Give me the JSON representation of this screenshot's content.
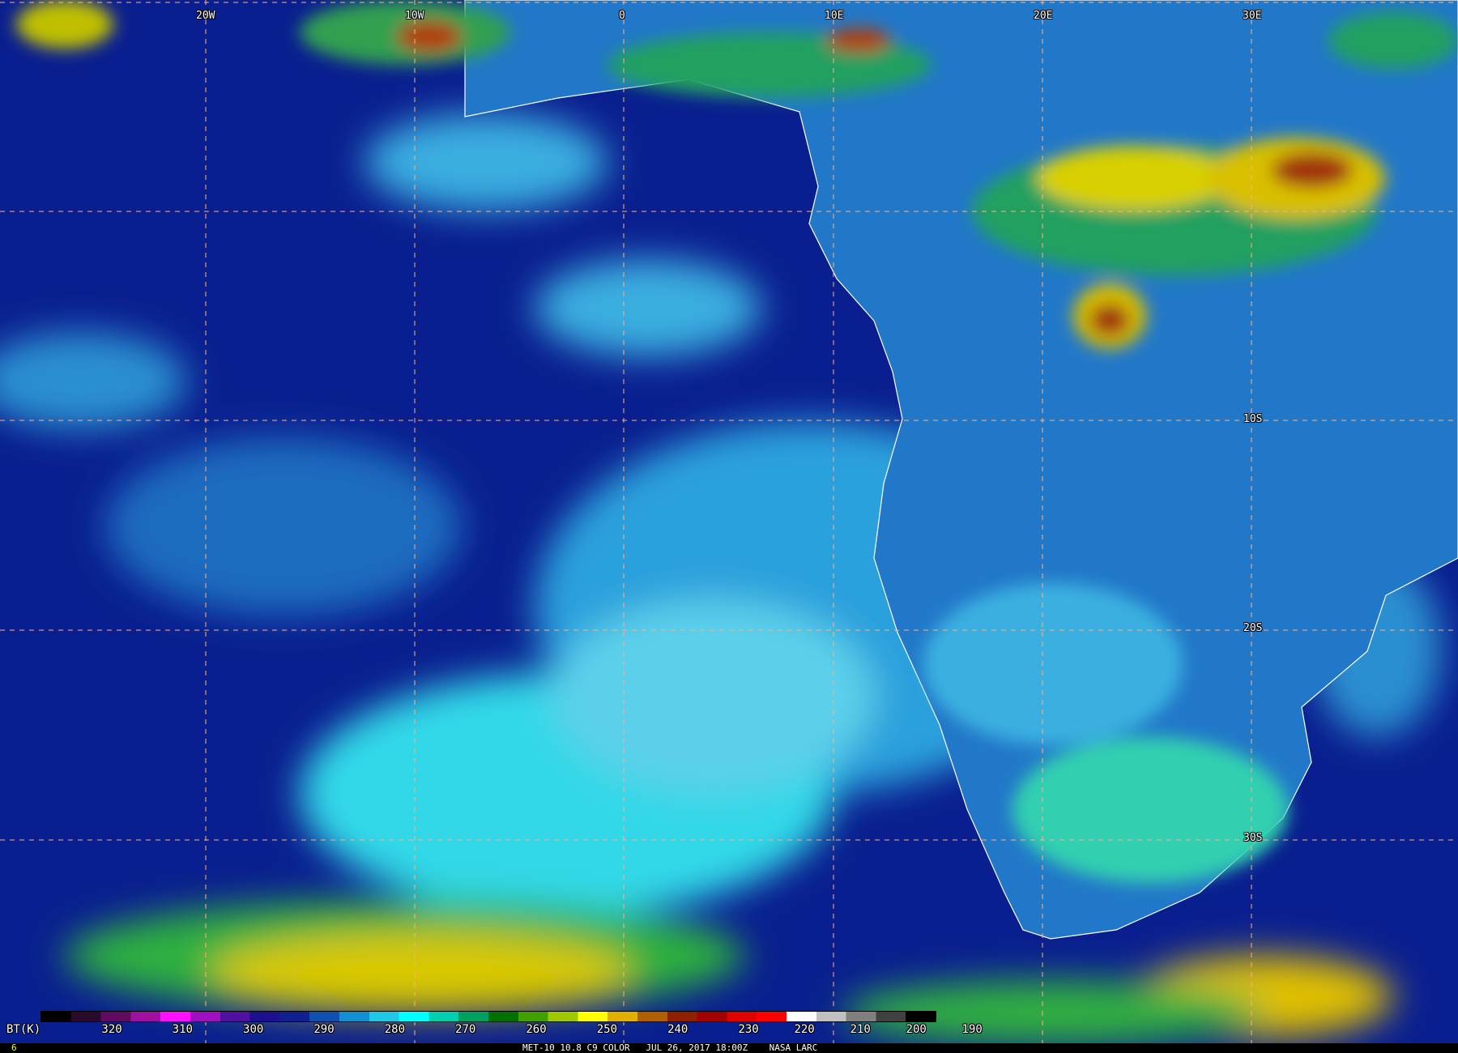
{
  "map": {
    "longitude_labels": [
      "20W",
      "10W",
      "0",
      "10E",
      "20E",
      "30E"
    ],
    "latitude_labels": [
      "10S",
      "20S",
      "30S"
    ],
    "colors": {
      "ocean": "#0a1f8f",
      "cloud_low": "#3fb4e6",
      "cloud_mid": "#2fe0e0",
      "cloud_high": "#e6d800",
      "cloud_top": "#b03010",
      "grid": "#ffb080",
      "border": "#ffffff"
    }
  },
  "colorbar": {
    "label": "BT(K)",
    "ticks": [
      "320",
      "310",
      "300",
      "290",
      "280",
      "270",
      "260",
      "250",
      "240",
      "230",
      "220",
      "210",
      "200",
      "190"
    ],
    "colors": [
      "#000000",
      "#2a0a2a",
      "#600a60",
      "#a010a0",
      "#ff10ff",
      "#a010c0",
      "#5010a0",
      "#1a1090",
      "#102090",
      "#1050b0",
      "#1090d0",
      "#20c8e8",
      "#00ffff",
      "#00d0b0",
      "#00a060",
      "#007000",
      "#40a000",
      "#a0c800",
      "#ffff00",
      "#e0b000",
      "#b06000",
      "#902000",
      "#a00000",
      "#e00000",
      "#ff0000",
      "#ffffff",
      "#c0c0c0",
      "#808080",
      "#404040",
      "#000000"
    ]
  },
  "footer": {
    "frame_number": "6",
    "caption": "MET-10 10.8 C9 COLOR   JUL 26, 2017 18:00Z    NASA LARC"
  }
}
